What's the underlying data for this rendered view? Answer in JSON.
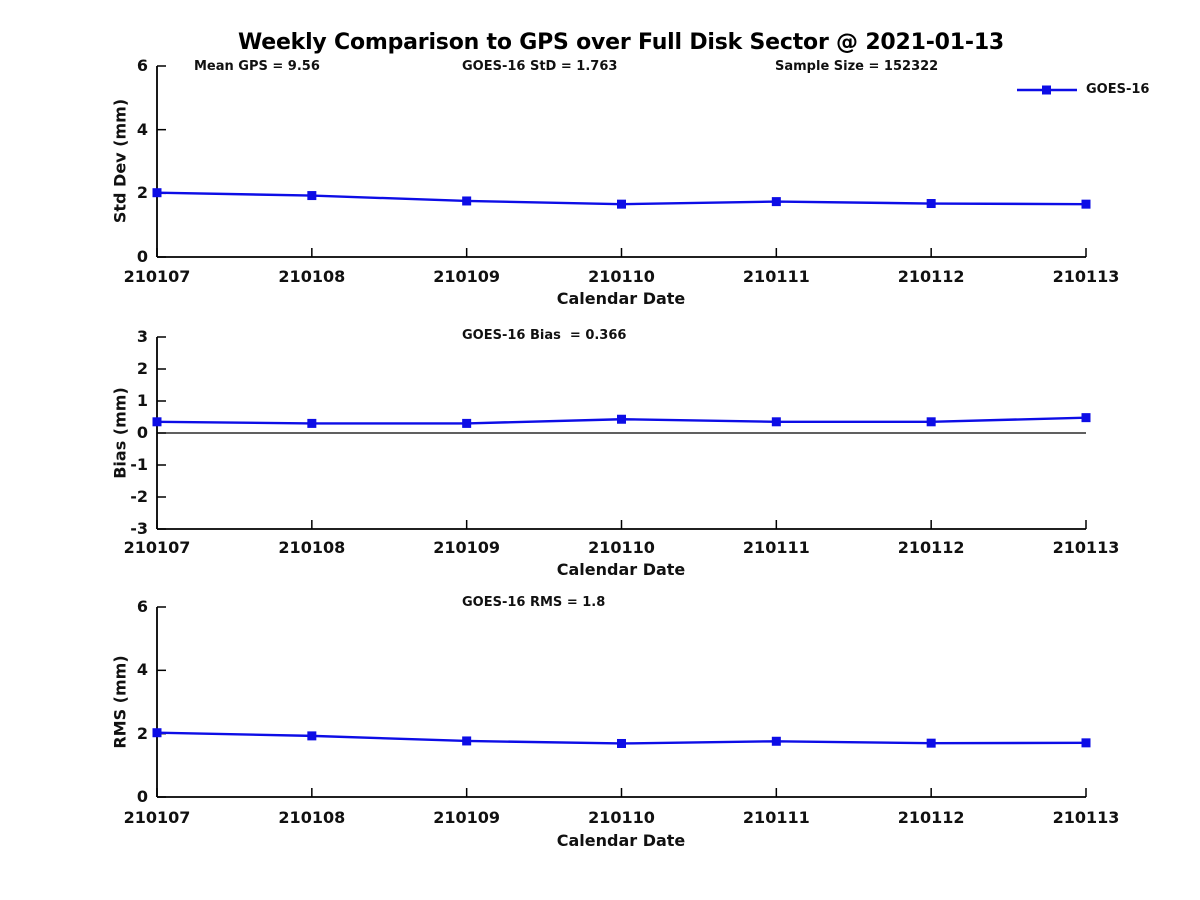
{
  "figure": {
    "title": "Weekly Comparison to GPS over Full Disk Sector @ 2021-01-13"
  },
  "colors": {
    "series_blue": "#0d0de6",
    "axis_black": "#000000",
    "text_dark": "#111111"
  },
  "legend": {
    "label": "GOES-16",
    "position": "top-right",
    "marker": "square"
  },
  "stats": {
    "mean_gps": 9.56,
    "goes16_std": 1.763,
    "sample_size": 152322,
    "goes16_bias": 0.366,
    "goes16_rms": 1.8
  },
  "chart_data": [
    {
      "type": "line",
      "subplot": "std-dev",
      "annotations": [
        "Mean GPS = 9.56",
        "GOES-16 StD = 1.763",
        "Sample Size = 152322"
      ],
      "ylabel": "Std Dev (mm)",
      "xlabel": "Calendar Date",
      "categories": [
        "210107",
        "210108",
        "210109",
        "210110",
        "210111",
        "210112",
        "210113"
      ],
      "ylim": [
        0,
        6
      ],
      "yticks": [
        0,
        2,
        4,
        6
      ],
      "grid": false,
      "zero_line": false,
      "legend_position": "top-right",
      "series": [
        {
          "name": "GOES-16",
          "marker": "square",
          "values": [
            2.02,
            1.93,
            1.76,
            1.66,
            1.74,
            1.68,
            1.66
          ]
        }
      ]
    },
    {
      "type": "line",
      "subplot": "bias",
      "annotations": [
        "GOES-16 Bias  = 0.366"
      ],
      "ylabel": "Bias (mm)",
      "xlabel": "Calendar Date",
      "categories": [
        "210107",
        "210108",
        "210109",
        "210110",
        "210111",
        "210112",
        "210113"
      ],
      "ylim": [
        -3,
        3
      ],
      "yticks": [
        -3,
        -2,
        -1,
        0,
        1,
        2,
        3
      ],
      "grid": false,
      "zero_line": true,
      "series": [
        {
          "name": "GOES-16",
          "marker": "square",
          "values": [
            0.35,
            0.3,
            0.3,
            0.43,
            0.35,
            0.35,
            0.48
          ]
        }
      ]
    },
    {
      "type": "line",
      "subplot": "rms",
      "annotations": [
        "GOES-16 RMS = 1.8"
      ],
      "ylabel": "RMS (mm)",
      "xlabel": "Calendar Date",
      "categories": [
        "210107",
        "210108",
        "210109",
        "210110",
        "210111",
        "210112",
        "210113"
      ],
      "ylim": [
        0,
        6
      ],
      "yticks": [
        0,
        2,
        4,
        6
      ],
      "grid": false,
      "zero_line": false,
      "series": [
        {
          "name": "GOES-16",
          "marker": "square",
          "values": [
            2.03,
            1.93,
            1.77,
            1.69,
            1.76,
            1.7,
            1.71
          ]
        }
      ]
    }
  ]
}
